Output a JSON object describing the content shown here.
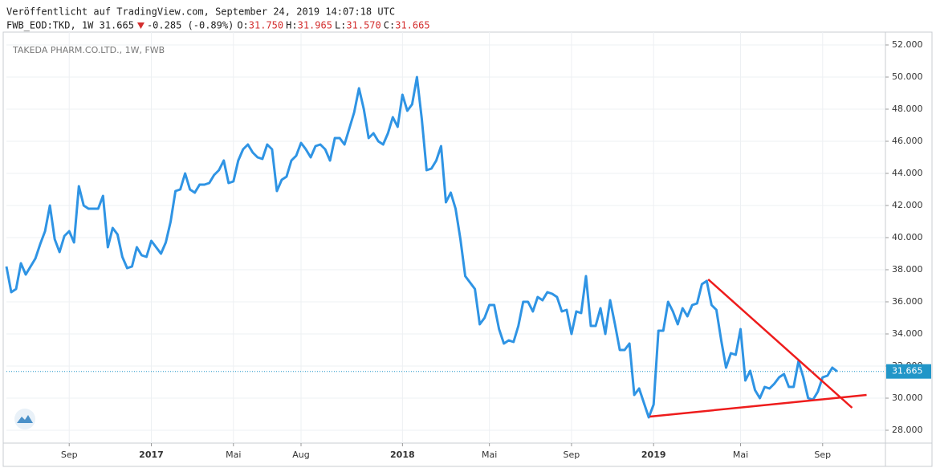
{
  "header": {
    "published": "Veröffentlicht auf TradingView.com, September 24, 2019 14:07:18 UTC",
    "symbol": "FWB_EOD:TKD, 1W 31.665",
    "change": "-0.285 (-0.89%)",
    "ohlc": [
      {
        "label": "O:",
        "value": "31.750"
      },
      {
        "label": "H:",
        "value": "31.965"
      },
      {
        "label": "L:",
        "value": "31.570"
      },
      {
        "label": "C:",
        "value": "31.665"
      }
    ]
  },
  "chart_data": {
    "type": "line",
    "subtitle": "TAKEDA PHARM.CO.LTD., 1W, FWB",
    "color": "#2f94e4",
    "grid": true,
    "categories": [
      null,
      null,
      null,
      null,
      null,
      null,
      null,
      null,
      null,
      null,
      null,
      null,
      null,
      "Sep",
      null,
      null,
      null,
      null,
      null,
      null,
      null,
      null,
      null,
      null,
      null,
      null,
      null,
      null,
      null,
      null,
      "2017",
      null,
      null,
      null,
      null,
      null,
      null,
      null,
      null,
      null,
      null,
      null,
      null,
      null,
      null,
      null,
      null,
      "Mai",
      null,
      null,
      null,
      null,
      null,
      null,
      null,
      null,
      null,
      null,
      null,
      null,
      null,
      "Aug",
      null,
      null,
      null,
      null,
      null,
      null,
      null,
      null,
      null,
      null,
      null,
      null,
      null,
      null,
      null,
      null,
      null,
      null,
      null,
      null,
      "2018",
      null,
      null,
      null,
      null,
      null,
      null,
      null,
      null,
      null,
      null,
      null,
      null,
      null,
      null,
      null,
      null,
      null,
      "Mai",
      null,
      null,
      null,
      null,
      null,
      null,
      null,
      null,
      null,
      null,
      null,
      null,
      null,
      null,
      null,
      null,
      "Sep",
      null,
      null,
      null,
      null,
      null,
      null,
      null,
      null,
      null,
      null,
      null,
      null,
      null,
      null,
      null,
      null,
      "2019",
      null,
      null,
      null,
      null,
      null,
      null,
      null,
      null,
      null,
      null,
      null,
      null,
      null,
      null,
      null,
      null,
      null,
      "Mai",
      null,
      null,
      null,
      null,
      null,
      null,
      null,
      null,
      null,
      null,
      null,
      null,
      null,
      null,
      null,
      null,
      "Sep",
      null,
      null,
      null
    ],
    "values": [
      38.2,
      36.6,
      36.8,
      38.4,
      37.7,
      38.2,
      38.7,
      39.6,
      40.4,
      42.0,
      39.9,
      39.1,
      40.1,
      40.4,
      39.7,
      43.2,
      42.0,
      41.8,
      41.8,
      41.8,
      42.6,
      39.4,
      40.6,
      40.2,
      38.8,
      38.1,
      38.2,
      39.4,
      38.9,
      38.8,
      39.8,
      39.4,
      39.0,
      39.7,
      41.0,
      42.9,
      43.0,
      44.0,
      43.0,
      42.8,
      43.3,
      43.3,
      43.4,
      43.9,
      44.2,
      44.8,
      43.4,
      43.5,
      44.8,
      45.5,
      45.8,
      45.3,
      45.0,
      44.9,
      45.8,
      45.5,
      42.9,
      43.6,
      43.8,
      44.8,
      45.1,
      45.9,
      45.5,
      45.0,
      45.7,
      45.8,
      45.5,
      44.8,
      46.2,
      46.2,
      45.8,
      46.8,
      47.8,
      49.3,
      48.0,
      46.2,
      46.5,
      46.0,
      45.8,
      46.5,
      47.5,
      46.9,
      48.9,
      47.9,
      48.3,
      50.0,
      47.4,
      44.2,
      44.3,
      44.8,
      45.7,
      42.2,
      42.8,
      41.8,
      39.9,
      37.6,
      37.2,
      36.8,
      34.6,
      35.0,
      35.8,
      35.8,
      34.3,
      33.4,
      33.6,
      33.5,
      34.5,
      36.0,
      36.0,
      35.4,
      36.3,
      36.1,
      36.6,
      36.5,
      36.3,
      35.4,
      35.5,
      34.0,
      35.4,
      35.3,
      37.6,
      34.5,
      34.5,
      35.6,
      34.0,
      36.1,
      34.6,
      33.0,
      33.0,
      33.4,
      30.2,
      30.6,
      29.7,
      28.8,
      29.6,
      34.2,
      34.2,
      36.0,
      35.4,
      34.6,
      35.6,
      35.1,
      35.8,
      35.9,
      37.1,
      37.3,
      35.8,
      35.5,
      33.6,
      31.9,
      32.8,
      32.7,
      34.3,
      31.1,
      31.7,
      30.5,
      30.0,
      30.7,
      30.6,
      30.9,
      31.3,
      31.5,
      30.7,
      30.7,
      32.3,
      31.3,
      30.0,
      29.9,
      30.4,
      31.3,
      31.4,
      31.9,
      31.665
    ],
    "last_price": 31.665,
    "last_price_color": "#2196c8",
    "trendlines": [
      {
        "color": "#ee1c1c",
        "x": [
          145.3,
          175.1
        ],
        "values": [
          37.4,
          29.4
        ]
      },
      {
        "color": "#ee1c1c",
        "x": [
          133.2,
          178.1
        ],
        "values": [
          28.85,
          30.2
        ]
      }
    ],
    "xlim": [
      0,
      182
    ],
    "ylim": [
      27.2,
      52.8
    ],
    "yticks": [
      {
        "value": 28,
        "label": "28.000"
      },
      {
        "value": 30,
        "label": "30.000"
      },
      {
        "value": 32,
        "label": "32.000"
      },
      {
        "value": 34,
        "label": "34.000"
      },
      {
        "value": 36,
        "label": "36.000"
      },
      {
        "value": 38,
        "label": "38.000"
      },
      {
        "value": 40,
        "label": "40.000"
      },
      {
        "value": 42,
        "label": "42.000"
      },
      {
        "value": 44,
        "label": "44.000"
      },
      {
        "value": 46,
        "label": "46.000"
      },
      {
        "value": 48,
        "label": "48.000"
      },
      {
        "value": 50,
        "label": "50.000"
      },
      {
        "value": 52,
        "label": "52.000"
      }
    ]
  }
}
